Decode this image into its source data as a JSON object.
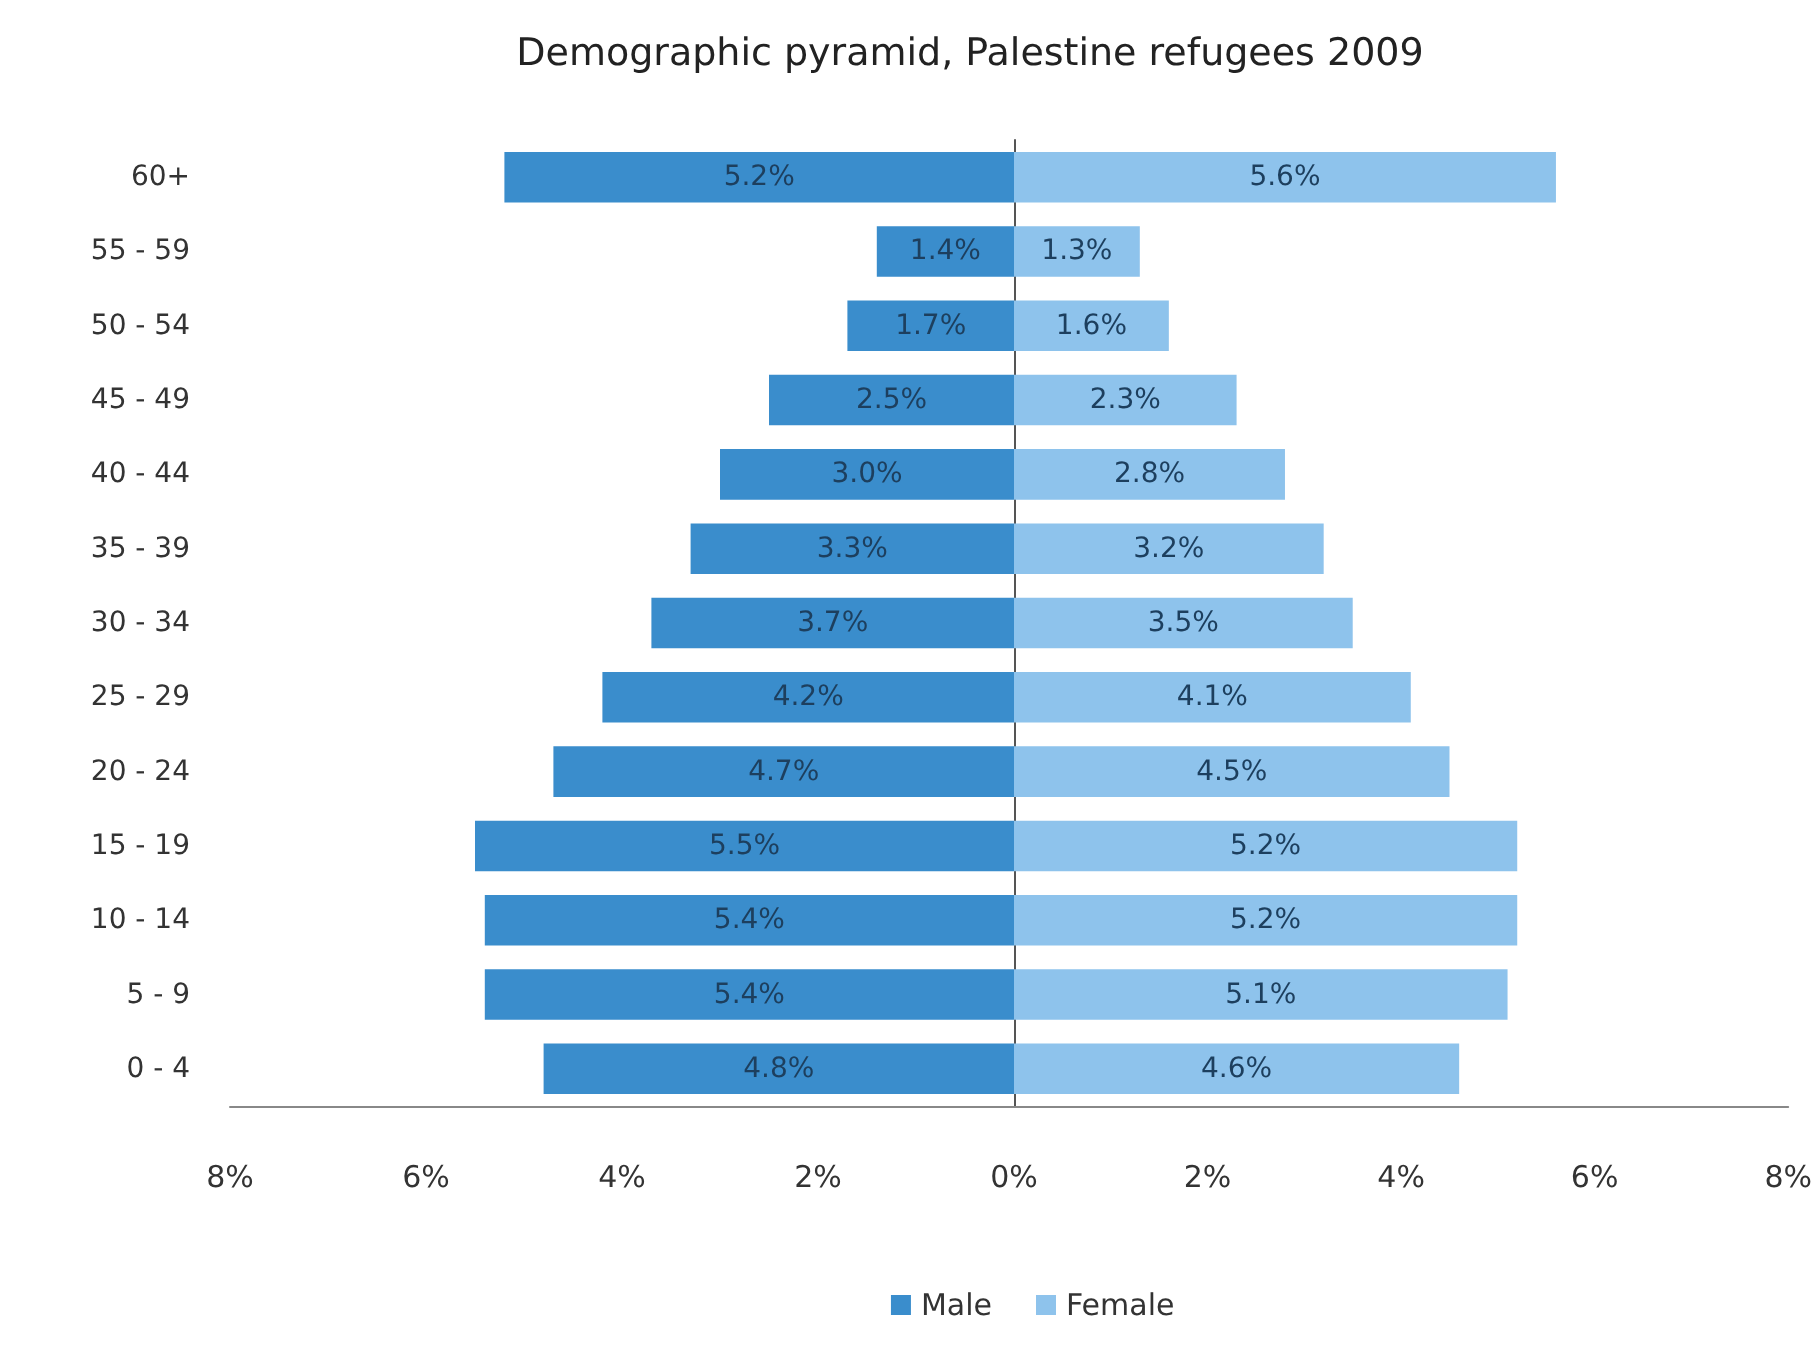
{
  "chart_data": [
    {
      "type": "bar",
      "orientation": "horizontal",
      "title": "Demographic pyramid, Palestine refugees 2009",
      "categories": [
        "60+",
        "55 - 59",
        "50 - 54",
        "45 - 49",
        "40 - 44",
        "35 - 39",
        "30 - 34",
        "25 - 29",
        "20 - 24",
        "15 - 19",
        "10 - 14",
        "5 - 9",
        "0 - 4"
      ],
      "series": [
        {
          "name": "Male",
          "color": "#3a8dcc",
          "values": [
            5.2,
            1.4,
            1.7,
            2.5,
            3.0,
            3.3,
            3.7,
            4.2,
            4.7,
            5.5,
            5.4,
            5.4,
            4.8
          ],
          "value_labels": [
            "5.2%",
            "1.4%",
            "1.7%",
            "2.5%",
            "3.0%",
            "3.3%",
            "3.7%",
            "4.2%",
            "4.7%",
            "5.5%",
            "5.4%",
            "5.4%",
            "4.8%"
          ]
        }
      ],
      "xlim": [
        8,
        0
      ],
      "xticks": [
        {
          "value": 8,
          "label": "8%"
        },
        {
          "value": 6,
          "label": "6%"
        },
        {
          "value": 4,
          "label": "4%"
        },
        {
          "value": 2,
          "label": "2%"
        }
      ],
      "grid": false,
      "legend": "bottom"
    },
    {
      "type": "bar",
      "orientation": "horizontal",
      "categories": [
        null,
        null,
        null,
        null,
        null,
        null,
        null,
        null,
        null,
        null,
        null,
        null,
        null
      ],
      "series": [
        {
          "name": "Female",
          "color": "#8ec3ec",
          "values": [
            5.6,
            1.3,
            1.6,
            2.3,
            2.8,
            3.2,
            3.5,
            4.1,
            4.5,
            5.2,
            5.2,
            5.1,
            4.6
          ],
          "value_labels": [
            "5.6%",
            "1.3%",
            "1.6%",
            "2.3%",
            "2.8%",
            "3.2%",
            "3.5%",
            "4.1%",
            "4.5%",
            "5.2%",
            "5.2%",
            "5.1%",
            "4.6%"
          ]
        }
      ],
      "xlim": [
        0,
        8
      ],
      "xticks": [
        {
          "value": 0,
          "label": "0%"
        },
        {
          "value": 2,
          "label": "2%"
        },
        {
          "value": 4,
          "label": "4%"
        },
        {
          "value": 6,
          "label": "6%"
        },
        {
          "value": 8,
          "label": "8%"
        }
      ],
      "tick_labels": "x",
      "grid": false,
      "legend": "bottom"
    }
  ]
}
